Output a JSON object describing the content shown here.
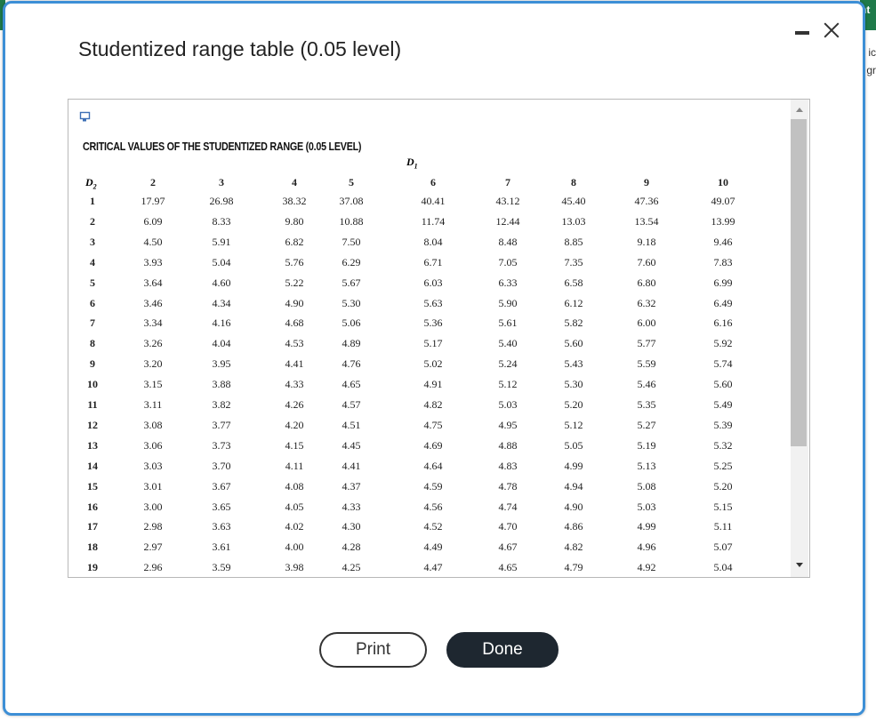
{
  "background": {
    "right_tab_text": "nt",
    "right_snippets": [
      "ic",
      "gr"
    ]
  },
  "dialog": {
    "title": "Studentized range table (0.05 level)",
    "minimize_icon": "minimize-icon",
    "close_icon": "close-icon"
  },
  "table": {
    "heading": "CRITICAL VALUES OF THE STUDENTIZED RANGE (0.05 LEVEL)",
    "d1_label": "D",
    "d1_sub": "1",
    "d2_label": "D",
    "d2_sub": "2",
    "column_headers": [
      "2",
      "3",
      "4",
      "5",
      "6",
      "7",
      "8",
      "9",
      "10"
    ],
    "rows": [
      {
        "d2": "1",
        "values": [
          "17.97",
          "26.98",
          "38.32",
          "37.08",
          "40.41",
          "43.12",
          "45.40",
          "47.36",
          "49.07"
        ]
      },
      {
        "d2": "2",
        "values": [
          "6.09",
          "8.33",
          "9.80",
          "10.88",
          "11.74",
          "12.44",
          "13.03",
          "13.54",
          "13.99"
        ]
      },
      {
        "d2": "3",
        "values": [
          "4.50",
          "5.91",
          "6.82",
          "7.50",
          "8.04",
          "8.48",
          "8.85",
          "9.18",
          "9.46"
        ]
      },
      {
        "d2": "4",
        "values": [
          "3.93",
          "5.04",
          "5.76",
          "6.29",
          "6.71",
          "7.05",
          "7.35",
          "7.60",
          "7.83"
        ]
      },
      {
        "d2": "5",
        "values": [
          "3.64",
          "4.60",
          "5.22",
          "5.67",
          "6.03",
          "6.33",
          "6.58",
          "6.80",
          "6.99"
        ]
      },
      {
        "d2": "6",
        "values": [
          "3.46",
          "4.34",
          "4.90",
          "5.30",
          "5.63",
          "5.90",
          "6.12",
          "6.32",
          "6.49"
        ]
      },
      {
        "d2": "7",
        "values": [
          "3.34",
          "4.16",
          "4.68",
          "5.06",
          "5.36",
          "5.61",
          "5.82",
          "6.00",
          "6.16"
        ]
      },
      {
        "d2": "8",
        "values": [
          "3.26",
          "4.04",
          "4.53",
          "4.89",
          "5.17",
          "5.40",
          "5.60",
          "5.77",
          "5.92"
        ]
      },
      {
        "d2": "9",
        "values": [
          "3.20",
          "3.95",
          "4.41",
          "4.76",
          "5.02",
          "5.24",
          "5.43",
          "5.59",
          "5.74"
        ]
      },
      {
        "d2": "10",
        "values": [
          "3.15",
          "3.88",
          "4.33",
          "4.65",
          "4.91",
          "5.12",
          "5.30",
          "5.46",
          "5.60"
        ]
      },
      {
        "d2": "11",
        "values": [
          "3.11",
          "3.82",
          "4.26",
          "4.57",
          "4.82",
          "5.03",
          "5.20",
          "5.35",
          "5.49"
        ]
      },
      {
        "d2": "12",
        "values": [
          "3.08",
          "3.77",
          "4.20",
          "4.51",
          "4.75",
          "4.95",
          "5.12",
          "5.27",
          "5.39"
        ]
      },
      {
        "d2": "13",
        "values": [
          "3.06",
          "3.73",
          "4.15",
          "4.45",
          "4.69",
          "4.88",
          "5.05",
          "5.19",
          "5.32"
        ]
      },
      {
        "d2": "14",
        "values": [
          "3.03",
          "3.70",
          "4.11",
          "4.41",
          "4.64",
          "4.83",
          "4.99",
          "5.13",
          "5.25"
        ]
      },
      {
        "d2": "15",
        "values": [
          "3.01",
          "3.67",
          "4.08",
          "4.37",
          "4.59",
          "4.78",
          "4.94",
          "5.08",
          "5.20"
        ]
      },
      {
        "d2": "16",
        "values": [
          "3.00",
          "3.65",
          "4.05",
          "4.33",
          "4.56",
          "4.74",
          "4.90",
          "5.03",
          "5.15"
        ]
      },
      {
        "d2": "17",
        "values": [
          "2.98",
          "3.63",
          "4.02",
          "4.30",
          "4.52",
          "4.70",
          "4.86",
          "4.99",
          "5.11"
        ]
      },
      {
        "d2": "18",
        "values": [
          "2.97",
          "3.61",
          "4.00",
          "4.28",
          "4.49",
          "4.67",
          "4.82",
          "4.96",
          "5.07"
        ]
      },
      {
        "d2": "19",
        "values": [
          "2.96",
          "3.59",
          "3.98",
          "4.25",
          "4.47",
          "4.65",
          "4.79",
          "4.92",
          "5.04"
        ]
      }
    ]
  },
  "buttons": {
    "print_label": "Print",
    "done_label": "Done"
  },
  "colors": {
    "dialog_border": "#3d8fd6",
    "done_bg": "#1e2730",
    "background_accent": "#1f7a4a"
  }
}
